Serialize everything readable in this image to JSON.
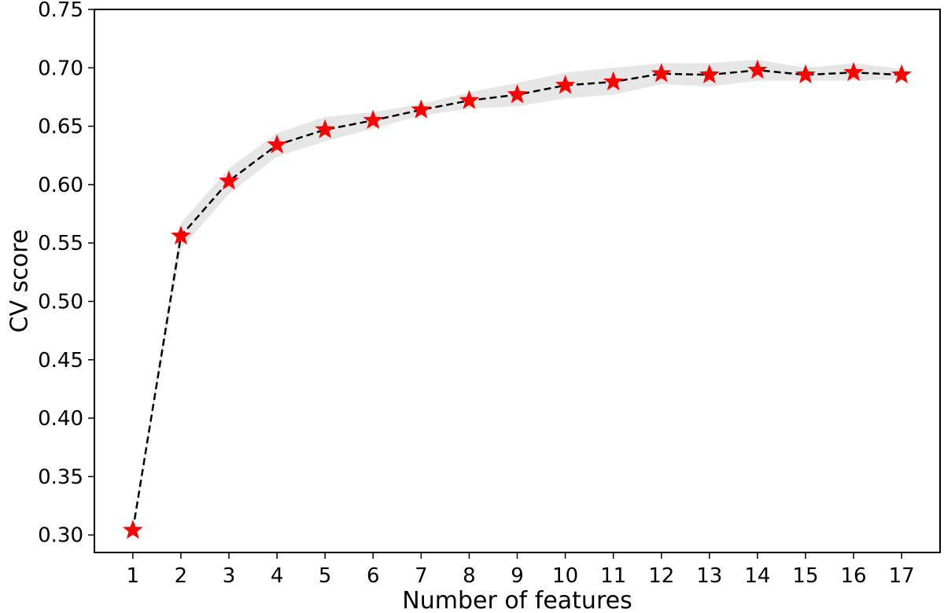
{
  "chart_data": {
    "type": "line",
    "title": "",
    "xlabel": "Number of features",
    "ylabel": "CV score",
    "xlim": [
      0.2,
      17.8
    ],
    "ylim": [
      0.285,
      0.75
    ],
    "x": [
      1,
      2,
      3,
      4,
      5,
      6,
      7,
      8,
      9,
      10,
      11,
      12,
      13,
      14,
      15,
      16,
      17
    ],
    "x_tick_labels": [
      "1",
      "2",
      "3",
      "4",
      "5",
      "6",
      "7",
      "8",
      "9",
      "10",
      "11",
      "12",
      "13",
      "14",
      "15",
      "16",
      "17"
    ],
    "y_ticks": [
      0.3,
      0.35,
      0.4,
      0.45,
      0.5,
      0.55,
      0.6,
      0.65,
      0.7,
      0.75
    ],
    "y_tick_labels": [
      "0.30",
      "0.35",
      "0.40",
      "0.45",
      "0.50",
      "0.55",
      "0.60",
      "0.65",
      "0.70",
      "0.75"
    ],
    "grid": false,
    "series": [
      {
        "values": [
          0.304,
          0.556,
          0.603,
          0.634,
          0.647,
          0.655,
          0.664,
          0.672,
          0.677,
          0.685,
          0.688,
          0.695,
          0.694,
          0.698,
          0.694,
          0.696,
          0.694
        ],
        "lower": [
          0.304,
          0.545,
          0.592,
          0.624,
          0.637,
          0.648,
          0.659,
          0.665,
          0.667,
          0.674,
          0.677,
          0.686,
          0.684,
          0.689,
          0.689,
          0.689,
          0.69
        ],
        "upper": [
          0.304,
          0.567,
          0.614,
          0.644,
          0.658,
          0.662,
          0.669,
          0.679,
          0.687,
          0.696,
          0.7,
          0.704,
          0.704,
          0.707,
          0.7,
          0.704,
          0.699
        ],
        "line_style": "dashed",
        "line_color": "#000000",
        "marker": "star",
        "marker_color": "#ff0000",
        "band_color": "#e6e6e6"
      }
    ]
  }
}
